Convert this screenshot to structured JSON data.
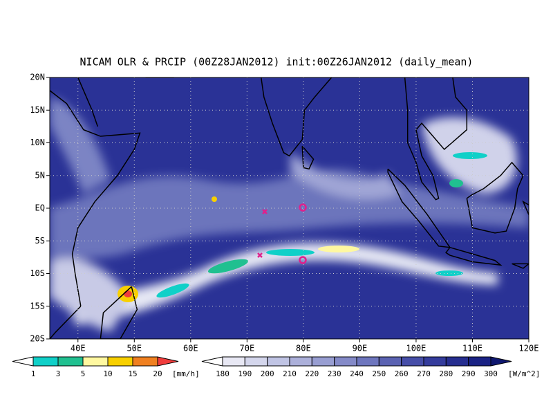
{
  "title": "NICAM OLR & PRCIP (00Z28JAN2012) init:00Z26JAN2012 (daily_mean)",
  "lat_labels": [
    "20N",
    "15N",
    "10N",
    "5N",
    "EQ",
    "5S",
    "10S",
    "15S",
    "20S"
  ],
  "lon_labels": [
    "40E",
    "50E",
    "60E",
    "70E",
    "80E",
    "90E",
    "100E",
    "110E",
    "120E"
  ],
  "precip_colorbar": {
    "labels": [
      1,
      3,
      5,
      10,
      15,
      20
    ],
    "unit": "[mm/h]",
    "colors": [
      "#ffffff",
      "#10d0c8",
      "#20c090",
      "#fff8a0",
      "#f8d000",
      "#f08020",
      "#f03c3c"
    ]
  },
  "olr_colorbar": {
    "labels": [
      180,
      190,
      200,
      210,
      220,
      230,
      240,
      250,
      260,
      270,
      280,
      290,
      300
    ],
    "unit": "[W/m^2]",
    "colors": [
      "#ffffff",
      "#e8e8f4",
      "#d4d6ec",
      "#c0c4e4",
      "#acb0da",
      "#989ed2",
      "#848ac8",
      "#6e76be",
      "#5a62b2",
      "#464ea8",
      "#343c9c",
      "#262e90",
      "#1a2284",
      "#101870"
    ]
  }
}
